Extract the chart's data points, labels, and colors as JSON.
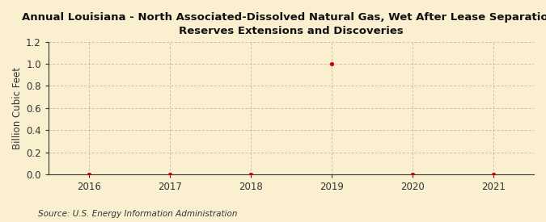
{
  "title_line1": "Annual Louisiana - North Associated-Dissolved Natural Gas, Wet After Lease Separation,",
  "title_line2": "Reserves Extensions and Discoveries",
  "ylabel": "Billion Cubic Feet",
  "source": "Source: U.S. Energy Information Administration",
  "x_values": [
    2016,
    2017,
    2018,
    2019,
    2020,
    2021
  ],
  "y_values": [
    0.0,
    0.0,
    0.0,
    1.0,
    0.0,
    0.0
  ],
  "xlim": [
    2015.5,
    2021.5
  ],
  "ylim": [
    0.0,
    1.2
  ],
  "yticks": [
    0.0,
    0.2,
    0.4,
    0.6,
    0.8,
    1.0,
    1.2
  ],
  "xticks": [
    2016,
    2017,
    2018,
    2019,
    2020,
    2021
  ],
  "marker_color": "#cc0000",
  "marker_size": 3.5,
  "background_color": "#faf0d0",
  "plot_bg_color": "#faf0d0",
  "grid_color": "#aaaaaa",
  "spine_color": "#333333",
  "title_fontsize": 9.5,
  "axis_fontsize": 8.5,
  "ylabel_fontsize": 8.5,
  "source_fontsize": 7.5,
  "tick_color": "#333333"
}
